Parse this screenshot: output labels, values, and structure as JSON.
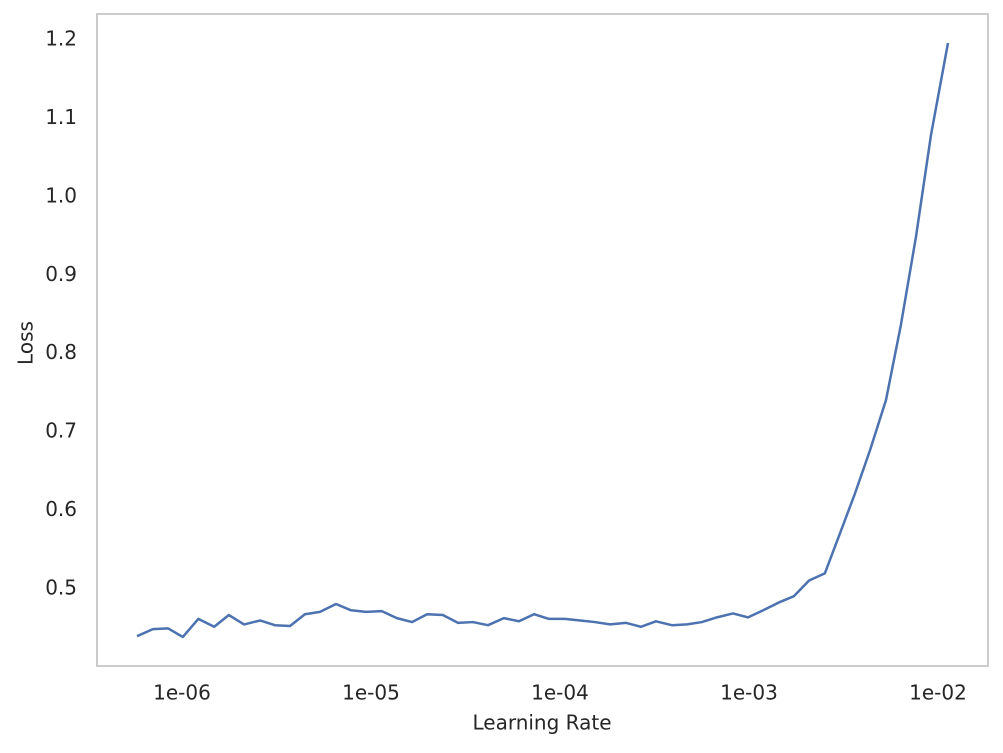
{
  "chart_data": {
    "type": "line",
    "x_label": "Learning Rate",
    "y_label": "Loss",
    "x_scale": "log",
    "grid": false,
    "x": [
      5.78e-07,
      7.02e-07,
      8.43e-07,
      1.01e-06,
      1.22e-06,
      1.48e-06,
      1.77e-06,
      2.13e-06,
      2.59e-06,
      3.1e-06,
      3.73e-06,
      4.47e-06,
      5.37e-06,
      6.53e-06,
      7.84e-06,
      9.41e-06,
      1.14e-05,
      1.37e-05,
      1.65e-05,
      1.98e-05,
      2.4e-05,
      2.89e-05,
      3.46e-05,
      4.16e-05,
      5.05e-05,
      6.07e-05,
      7.29e-05,
      8.75e-05,
      0.000106,
      0.000128,
      0.000153,
      0.000184,
      0.000223,
      0.000268,
      0.000322,
      0.000391,
      0.00047,
      0.000564,
      0.000677,
      0.000823,
      0.000988,
      0.00119,
      0.00144,
      0.00173,
      0.00208,
      0.00252,
      0.00303,
      0.00364,
      0.00437,
      0.00531,
      0.00637,
      0.00765,
      0.00919,
      0.0113
    ],
    "series": [
      {
        "name": "Loss",
        "color": "#4c72b0",
        "values": [
          0.44,
          0.449,
          0.45,
          0.439,
          0.462,
          0.452,
          0.467,
          0.455,
          0.46,
          0.454,
          0.453,
          0.468,
          0.471,
          0.481,
          0.473,
          0.471,
          0.472,
          0.463,
          0.458,
          0.468,
          0.467,
          0.457,
          0.458,
          0.454,
          0.463,
          0.459,
          0.468,
          0.462,
          0.462,
          0.46,
          0.458,
          0.455,
          0.457,
          0.452,
          0.459,
          0.454,
          0.455,
          0.458,
          0.464,
          0.469,
          0.464,
          0.473,
          0.483,
          0.491,
          0.511,
          0.52,
          0.571,
          0.622,
          0.677,
          0.741,
          0.837,
          0.949,
          1.079,
          1.196
        ]
      }
    ],
    "xlim": [
      3.55e-07,
      0.0184
    ],
    "xticks": [
      {
        "value": 1e-06,
        "label": "1e-06"
      },
      {
        "value": 1e-05,
        "label": "1e-05"
      },
      {
        "value": 0.0001,
        "label": "1e-04"
      },
      {
        "value": 0.001,
        "label": "1e-03"
      },
      {
        "value": 0.01,
        "label": "1e-02"
      }
    ],
    "ylim": [
      0.402,
      1.233
    ],
    "yticks": [
      0.5,
      0.6,
      0.7,
      0.8,
      0.9,
      {
        "value": 1,
        "label": "1.0"
      },
      1.1,
      1.2
    ]
  }
}
